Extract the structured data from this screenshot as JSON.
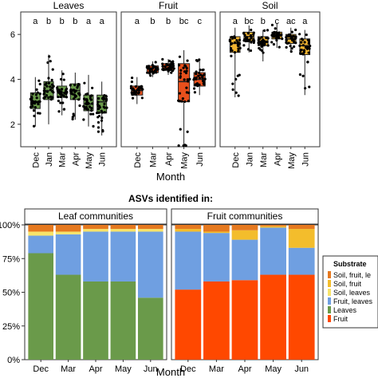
{
  "chart_data": [
    {
      "type": "box",
      "xlabel": "Month",
      "ylabel": "",
      "ylim": [
        1,
        7
      ],
      "yticks": [
        2,
        4,
        6
      ],
      "panels": [
        {
          "title": "Leaves",
          "color": "#6a9a4a",
          "categories": [
            "Dec",
            "Jan",
            "Mar",
            "Apr",
            "May",
            "Jun"
          ],
          "letters": [
            "a",
            "b",
            "b",
            "b",
            "a",
            "a"
          ],
          "boxes": [
            {
              "min": 1.9,
              "q1": 2.7,
              "median": 3.0,
              "q3": 3.4,
              "max": 4.1
            },
            {
              "min": 2.0,
              "q1": 3.1,
              "median": 3.5,
              "q3": 3.9,
              "max": 5.1
            },
            {
              "min": 2.4,
              "q1": 3.2,
              "median": 3.4,
              "q3": 3.7,
              "max": 4.4
            },
            {
              "min": 2.2,
              "q1": 3.1,
              "median": 3.5,
              "q3": 3.8,
              "max": 4.3
            },
            {
              "min": 1.9,
              "q1": 2.6,
              "median": 2.9,
              "q3": 3.3,
              "max": 4.2
            },
            {
              "min": 1.5,
              "q1": 2.5,
              "median": 3.0,
              "q3": 3.3,
              "max": 3.9
            }
          ]
        },
        {
          "title": "Fruit",
          "color": "#e8501c",
          "categories": [
            "Dec",
            "Mar",
            "Apr",
            "May",
            "Jun"
          ],
          "letters": [
            "a",
            "b",
            "b",
            "bc",
            "c"
          ],
          "boxes": [
            {
              "min": 2.9,
              "q1": 3.3,
              "median": 3.5,
              "q3": 3.7,
              "max": 4.1
            },
            {
              "min": 4.1,
              "q1": 4.3,
              "median": 4.5,
              "q3": 4.6,
              "max": 4.8
            },
            {
              "min": 4.2,
              "q1": 4.4,
              "median": 4.6,
              "q3": 4.7,
              "max": 4.9
            },
            {
              "min": 0.3,
              "q1": 3.0,
              "median": 3.9,
              "q3": 4.7,
              "max": 5.3
            },
            {
              "min": 3.3,
              "q1": 3.7,
              "median": 4.0,
              "q3": 4.3,
              "max": 4.9
            }
          ]
        },
        {
          "title": "Soil",
          "color": "#f2b430",
          "categories": [
            "Dec",
            "Jan",
            "Mar",
            "Apr",
            "May",
            "Jun"
          ],
          "letters": [
            "a",
            "bc",
            "b",
            "c",
            "ac",
            "a"
          ],
          "boxes": [
            {
              "min": 3.2,
              "q1": 5.2,
              "median": 5.6,
              "q3": 5.9,
              "max": 6.3
            },
            {
              "min": 5.2,
              "q1": 5.7,
              "median": 5.9,
              "q3": 6.1,
              "max": 6.4
            },
            {
              "min": 4.8,
              "q1": 5.5,
              "median": 5.7,
              "q3": 5.9,
              "max": 6.2
            },
            {
              "min": 5.4,
              "q1": 5.8,
              "median": 6.0,
              "q3": 6.1,
              "max": 6.5
            },
            {
              "min": 5.2,
              "q1": 5.6,
              "median": 5.8,
              "q3": 6.0,
              "max": 6.3
            },
            {
              "min": 3.3,
              "q1": 5.1,
              "median": 5.5,
              "q3": 5.8,
              "max": 6.2
            }
          ]
        }
      ]
    },
    {
      "type": "stacked-bar",
      "title": "ASVs identified in:",
      "xlabel": "Month",
      "ylabel": "",
      "ylim": [
        0,
        100
      ],
      "ytick_labels": [
        "0%",
        "25%",
        "50%",
        "75%",
        "100%"
      ],
      "legend": {
        "title": "Substrate",
        "position": "right",
        "entries": [
          {
            "label": "Soil, fruit, le",
            "color": "#e6791f"
          },
          {
            "label": "Soil, fruit",
            "color": "#f3bd2c"
          },
          {
            "label": "Soil, leaves",
            "color": "#f7e36a"
          },
          {
            "label": "Fruit, leaves",
            "color": "#6f9fe1"
          },
          {
            "label": "Leaves",
            "color": "#6a9a4a"
          },
          {
            "label": "Fruit",
            "color": "#ff4800"
          }
        ]
      },
      "stack_order": [
        "Leaves",
        "Fruit",
        "Fruit, leaves",
        "Soil, leaves",
        "Soil, fruit",
        "Soil, fruit, le"
      ],
      "panels": [
        {
          "title": "Leaf communities",
          "categories": [
            "Dec",
            "Mar",
            "Apr",
            "May",
            "Jun"
          ],
          "series": [
            {
              "name": "Leaves",
              "values": [
                79,
                63,
                58,
                58,
                46
              ]
            },
            {
              "name": "Fruit",
              "values": [
                0,
                0,
                0,
                0,
                0
              ]
            },
            {
              "name": "Fruit, leaves",
              "values": [
                13,
                30,
                37,
                37,
                49
              ]
            },
            {
              "name": "Soil, leaves",
              "values": [
                3,
                2,
                2,
                2,
                2
              ]
            },
            {
              "name": "Soil, fruit",
              "values": [
                0,
                0,
                0,
                0,
                0
              ]
            },
            {
              "name": "Soil, fruit, le",
              "values": [
                5,
                5,
                3,
                3,
                3
              ]
            }
          ]
        },
        {
          "title": "Fruit communities",
          "categories": [
            "Dec",
            "Mar",
            "Apr",
            "May",
            "Jun"
          ],
          "series": [
            {
              "name": "Leaves",
              "values": [
                0,
                0,
                0,
                0,
                0
              ]
            },
            {
              "name": "Fruit",
              "values": [
                52,
                58,
                59,
                63,
                63
              ]
            },
            {
              "name": "Fruit, leaves",
              "values": [
                43,
                36,
                30,
                35,
                20
              ]
            },
            {
              "name": "Soil, leaves",
              "values": [
                0,
                0,
                0,
                0,
                0
              ]
            },
            {
              "name": "Soil, fruit",
              "values": [
                2,
                1,
                7,
                1,
                14
              ]
            },
            {
              "name": "Soil, fruit, le",
              "values": [
                3,
                5,
                4,
                1,
                3
              ]
            }
          ]
        }
      ]
    }
  ]
}
